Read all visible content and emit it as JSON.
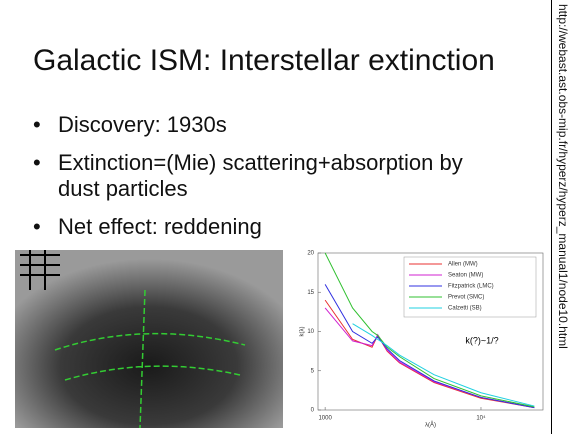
{
  "header": {
    "title": "Galactic ISM: Interstellar extinction"
  },
  "bullets": [
    "Discovery: 1930s",
    "Extinction=(Mie) scattering+absorption by dust particles",
    "Net effect: reddening"
  ],
  "source_url": "http://webast.ast.obs-mip.fr/hyperz/hyperz_manual1/node10.html",
  "chart_data": {
    "type": "line",
    "x": [
      1000,
      1500,
      2000,
      2175,
      2500,
      3000,
      5000,
      10000,
      22000
    ],
    "series": [
      {
        "name": "Allen (MW)",
        "color": "#e83030",
        "values": [
          14,
          9,
          8,
          9.5,
          7.5,
          6,
          3.5,
          1.5,
          0.3
        ]
      },
      {
        "name": "Seaton (MW)",
        "color": "#d020d0",
        "values": [
          13,
          8.8,
          8.2,
          9.6,
          7.6,
          6.1,
          3.6,
          1.6,
          0.3
        ]
      },
      {
        "name": "Fitzpatrick (LMC)",
        "color": "#3030e0",
        "values": [
          16,
          10,
          8.5,
          9.3,
          7.8,
          6.3,
          3.7,
          1.6,
          0.3
        ]
      },
      {
        "name": "Prevot (SMC)",
        "color": "#30c030",
        "values": [
          20,
          13,
          10,
          9.5,
          8,
          6.8,
          4,
          1.8,
          0.4
        ]
      },
      {
        "name": "Calzetti (SB)",
        "color": "#20d0e0",
        "values": [
          null,
          11,
          9.5,
          9,
          8.2,
          7,
          4.5,
          2.2,
          0.5
        ]
      }
    ],
    "xlim": [
      900,
      25000
    ],
    "ylim": [
      0,
      20
    ],
    "xticks": [
      {
        "value": 1000,
        "label": "1000"
      },
      {
        "value": 10000,
        "label": "10⁴"
      }
    ],
    "yticks": [
      0,
      5,
      10,
      15,
      20
    ],
    "log_x": true,
    "xlabel": "λ(Å)",
    "ylabel": "k(λ)",
    "annotation": "k(?)~1/?"
  }
}
